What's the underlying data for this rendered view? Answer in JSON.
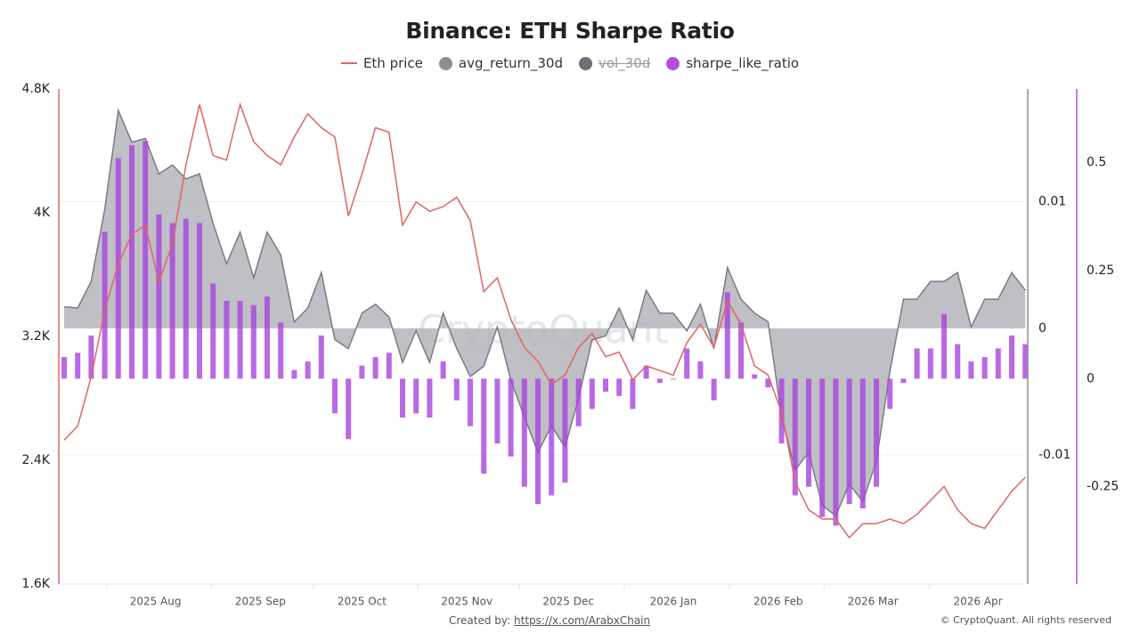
{
  "chart_data": {
    "type": "bar+line+area",
    "title": "Binance: ETH Sharpe Ratio",
    "legend": {
      "placement": "top-center",
      "items": [
        {
          "name": "Eth price",
          "color": "#e06464",
          "kind": "line",
          "hidden": false
        },
        {
          "name": "avg_return_30d",
          "color": "#8e8e96",
          "kind": "area",
          "hidden": false
        },
        {
          "name": "vol_30d",
          "color": "#6e6e76",
          "kind": "line",
          "hidden": true
        },
        {
          "name": "sharpe_like_ratio",
          "color": "#b050e0",
          "kind": "bar",
          "hidden": false
        }
      ]
    },
    "x_ticks": [
      "2025 Aug",
      "2025 Sep",
      "2025 Oct",
      "2025 Nov",
      "2025 Dec",
      "2026 Jan",
      "2026 Feb",
      "2026 Mar",
      "2026 Apr"
    ],
    "x_tick_dates": [
      "2025-08-01",
      "2025-09-01",
      "2025-10-01",
      "2025-11-01",
      "2025-12-01",
      "2026-01-01",
      "2026-02-01",
      "2026-03-01",
      "2026-04-01"
    ],
    "axes": {
      "price": {
        "ticks": [
          "1.6K",
          "2.4K",
          "3.2K",
          "4K",
          "4.8K"
        ],
        "tick_values": [
          1600,
          2400,
          3200,
          4000,
          4800
        ],
        "range": [
          1600,
          4800
        ],
        "color": "#e06464",
        "side": "left"
      },
      "avg_return": {
        "ticks": [
          "-0.01",
          "0",
          "0.01"
        ],
        "tick_values": [
          -0.01,
          0,
          0.01
        ],
        "range": [
          -0.0202,
          0.0189
        ],
        "color": "#8e8e96",
        "side": "right"
      },
      "sharpe": {
        "ticks": [
          "-0.25",
          "0",
          "0.25",
          "0.5"
        ],
        "tick_values": [
          -0.25,
          0,
          0.25,
          0.5
        ],
        "range": [
          -0.475,
          0.67
        ],
        "color": "#b050e0",
        "side": "right"
      }
    },
    "grid": true,
    "dates": [
      "2025-07-05",
      "2025-07-09",
      "2025-07-13",
      "2025-07-17",
      "2025-07-21",
      "2025-07-25",
      "2025-07-29",
      "2025-08-02",
      "2025-08-06",
      "2025-08-10",
      "2025-08-14",
      "2025-08-18",
      "2025-08-22",
      "2025-08-26",
      "2025-08-30",
      "2025-09-03",
      "2025-09-07",
      "2025-09-11",
      "2025-09-15",
      "2025-09-19",
      "2025-09-23",
      "2025-09-27",
      "2025-10-01",
      "2025-10-05",
      "2025-10-09",
      "2025-10-13",
      "2025-10-17",
      "2025-10-21",
      "2025-10-25",
      "2025-10-29",
      "2025-11-02",
      "2025-11-06",
      "2025-11-10",
      "2025-11-14",
      "2025-11-18",
      "2025-11-22",
      "2025-11-26",
      "2025-11-30",
      "2025-12-04",
      "2025-12-08",
      "2025-12-12",
      "2025-12-16",
      "2025-12-20",
      "2025-12-24",
      "2025-12-28",
      "2026-01-01",
      "2026-01-05",
      "2026-01-09",
      "2026-01-13",
      "2026-01-17",
      "2026-01-21",
      "2026-01-25",
      "2026-01-29",
      "2026-02-02",
      "2026-02-06",
      "2026-02-10",
      "2026-02-14",
      "2026-02-18",
      "2026-02-22",
      "2026-02-26",
      "2026-03-02",
      "2026-03-06",
      "2026-03-10",
      "2026-03-14",
      "2026-03-18",
      "2026-03-22",
      "2026-03-26",
      "2026-03-30",
      "2026-04-03",
      "2026-04-07",
      "2026-04-11",
      "2026-04-15"
    ],
    "series": [
      {
        "name": "Eth price",
        "axis": "price",
        "values": [
          2530,
          2620,
          2940,
          3370,
          3670,
          3860,
          3920,
          3550,
          3800,
          4310,
          4700,
          4370,
          4340,
          4700,
          4460,
          4370,
          4310,
          4490,
          4640,
          4550,
          4490,
          3980,
          4250,
          4550,
          4520,
          3920,
          4070,
          4010,
          4040,
          4100,
          3950,
          3490,
          3580,
          3310,
          3130,
          3040,
          2890,
          2950,
          3130,
          3220,
          3070,
          3100,
          2920,
          3010,
          2980,
          2950,
          3160,
          3280,
          3130,
          3430,
          3280,
          3010,
          2950,
          2710,
          2260,
          2080,
          2020,
          2020,
          1900,
          1990,
          1990,
          2020,
          1990,
          2050,
          2140,
          2230,
          2080,
          1990,
          1960,
          2080,
          2200,
          2290
        ]
      },
      {
        "name": "avg_return_30d",
        "axis": "avg_return",
        "values": [
          0.0017,
          0.0016,
          0.0037,
          0.0094,
          0.0172,
          0.0147,
          0.015,
          0.0122,
          0.0129,
          0.0118,
          0.0122,
          0.0083,
          0.0051,
          0.0076,
          0.004,
          0.0076,
          0.0058,
          0.0005,
          0.0016,
          0.0044,
          -0.0009,
          -0.0016,
          0.0012,
          0.0019,
          0.0009,
          -0.0027,
          -0.0002,
          -0.0027,
          0.0012,
          -0.0016,
          -0.0038,
          -0.003,
          0.0001,
          -0.0041,
          -0.007,
          -0.0098,
          -0.0077,
          -0.0094,
          -0.0055,
          -0.0009,
          -0.0006,
          0.0016,
          -0.0009,
          0.003,
          0.0012,
          0.0012,
          -0.0002,
          0.0019,
          -0.0016,
          0.0048,
          0.0023,
          0.0012,
          0.0005,
          -0.007,
          -0.0112,
          -0.0098,
          -0.014,
          -0.0148,
          -0.0123,
          -0.0137,
          -0.0105,
          -0.0034,
          0.0023,
          0.0023,
          0.0037,
          0.0037,
          0.0044,
          0.0001,
          0.0023,
          0.0023,
          0.0044,
          0.003
        ]
      },
      {
        "name": "sharpe_like_ratio",
        "axis": "sharpe",
        "values": [
          0.05,
          0.06,
          0.1,
          0.34,
          0.51,
          0.54,
          0.55,
          0.38,
          0.36,
          0.37,
          0.36,
          0.22,
          0.18,
          0.18,
          0.17,
          0.19,
          0.13,
          0.02,
          0.04,
          0.1,
          -0.08,
          -0.14,
          0.03,
          0.05,
          0.06,
          -0.09,
          -0.08,
          -0.09,
          0.04,
          -0.05,
          -0.11,
          -0.22,
          -0.15,
          -0.18,
          -0.25,
          -0.29,
          -0.27,
          -0.24,
          -0.11,
          -0.07,
          -0.03,
          -0.04,
          -0.07,
          0.03,
          -0.01,
          0.0,
          0.07,
          0.04,
          -0.05,
          0.2,
          0.13,
          0.01,
          -0.02,
          -0.15,
          -0.27,
          -0.25,
          -0.32,
          -0.34,
          -0.29,
          -0.3,
          -0.25,
          -0.07,
          -0.01,
          0.07,
          0.07,
          0.15,
          0.08,
          0.04,
          0.05,
          0.07,
          0.1,
          0.08
        ]
      }
    ]
  },
  "watermark": "CryptoQuant",
  "footer": {
    "created_by_label": "Created by:",
    "created_by_link": "https://x.com/ArabxChain",
    "copyright": "© CryptoQuant. All rights reserved"
  }
}
